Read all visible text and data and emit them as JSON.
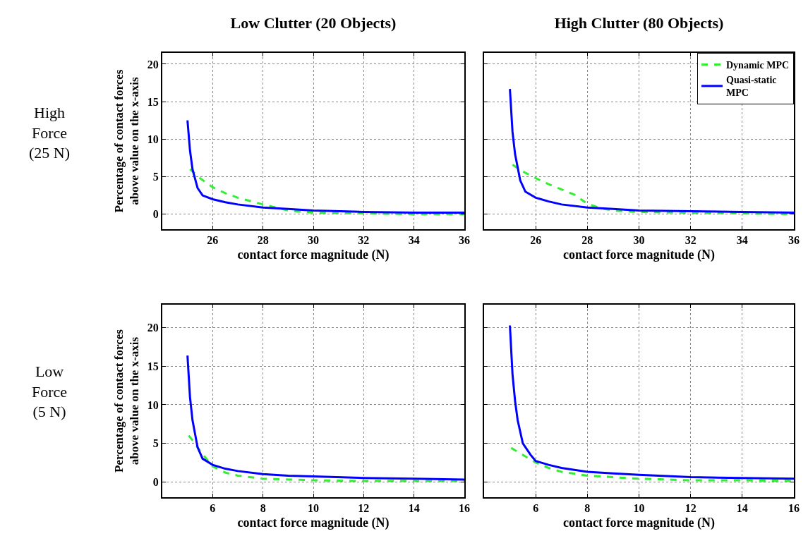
{
  "chart_data": [
    {
      "type": "line",
      "title": "Low Clutter (20 Objects)",
      "xlabel": "contact force magnitude (N)",
      "ylabel": "Percentage of contact forces above value on the x-axis",
      "annotations": [
        "High Force (25 N)"
      ],
      "xlim": [
        24,
        36
      ],
      "xticks": [
        26,
        28,
        30,
        32,
        34,
        36
      ],
      "ylim": [
        -2,
        21.5
      ],
      "yticks": [
        0,
        5,
        10,
        15,
        20
      ],
      "grid": true,
      "legend": false,
      "series": [
        {
          "color": "#33ee33",
          "line_style": "dashed",
          "x": [
            25.1,
            25.5,
            26,
            26.5,
            27,
            28,
            29,
            30,
            32,
            34,
            36
          ],
          "values": [
            6,
            4.8,
            3.6,
            2.8,
            2.2,
            1.3,
            0.5,
            0.2,
            0.1,
            0,
            0
          ]
        },
        {
          "color": "#0000ff",
          "line_style": "solid",
          "x": [
            25,
            25.1,
            25.2,
            25.4,
            25.6,
            26,
            26.5,
            27,
            28,
            29,
            30,
            32,
            34,
            36
          ],
          "values": [
            12.5,
            8.5,
            6,
            3.5,
            2.5,
            2,
            1.6,
            1.3,
            0.9,
            0.7,
            0.5,
            0.3,
            0.2,
            0.2
          ]
        }
      ]
    },
    {
      "type": "line",
      "title": "High Clutter (80 Objects)",
      "xlabel": "contact force magnitude (N)",
      "xlim": [
        24,
        36
      ],
      "xticks": [
        26,
        28,
        30,
        32,
        34,
        36
      ],
      "ylim": [
        -2,
        21.5
      ],
      "yticks": [
        0,
        5,
        10,
        15,
        20
      ],
      "grid": true,
      "legend": "top right",
      "tick_labels": "x",
      "series": [
        {
          "name": "Dynamic MPC",
          "color": "#33ee33",
          "line_style": "dashed",
          "x": [
            25.1,
            25.5,
            26,
            26.5,
            27,
            27.5,
            28,
            28.5,
            29,
            30,
            32,
            34,
            36
          ],
          "values": [
            6.6,
            5.7,
            4.8,
            4,
            3.3,
            2.6,
            1.4,
            0.8,
            0.5,
            0.3,
            0.2,
            0.1,
            0
          ]
        },
        {
          "name": "Quasi-static MPC",
          "color": "#0000ff",
          "line_style": "solid",
          "x": [
            25,
            25.1,
            25.2,
            25.4,
            25.6,
            26,
            26.5,
            27,
            28,
            29,
            30,
            32,
            34,
            36
          ],
          "values": [
            16.7,
            11,
            8,
            4.5,
            3,
            2.2,
            1.7,
            1.3,
            0.9,
            0.7,
            0.5,
            0.4,
            0.3,
            0.2
          ]
        }
      ]
    },
    {
      "type": "line",
      "xlabel": "contact force magnitude (N)",
      "ylabel": "Percentage of contact forces above value on the x-axis",
      "annotations": [
        "Low Force (5 N)"
      ],
      "xlim": [
        4,
        16
      ],
      "xticks": [
        6,
        8,
        10,
        12,
        14,
        16
      ],
      "ylim": [
        -2,
        23
      ],
      "yticks": [
        0,
        5,
        10,
        15,
        20
      ],
      "grid": true,
      "legend": false,
      "series": [
        {
          "color": "#33ee33",
          "line_style": "dashed",
          "x": [
            5.05,
            5.3,
            5.5,
            6,
            6.5,
            7,
            8,
            9,
            10,
            12,
            14,
            16
          ],
          "values": [
            6,
            5,
            4,
            2,
            1.2,
            0.8,
            0.4,
            0.3,
            0.2,
            0.1,
            0.1,
            0.1
          ]
        },
        {
          "color": "#0000ff",
          "line_style": "solid",
          "x": [
            5,
            5.1,
            5.2,
            5.4,
            5.6,
            6,
            6.5,
            7,
            8,
            9,
            10,
            12,
            14,
            16
          ],
          "values": [
            16.4,
            11,
            8,
            4.5,
            3,
            2.2,
            1.7,
            1.4,
            1,
            0.8,
            0.7,
            0.5,
            0.4,
            0.3
          ]
        }
      ]
    },
    {
      "type": "line",
      "xlabel": "contact force magnitude (N)",
      "xlim": [
        4,
        16
      ],
      "xticks": [
        6,
        8,
        10,
        12,
        14,
        16
      ],
      "ylim": [
        -2,
        23
      ],
      "yticks": [
        0,
        5,
        10,
        15,
        20
      ],
      "grid": true,
      "legend": false,
      "tick_labels": "x",
      "series": [
        {
          "color": "#33ee33",
          "line_style": "dashed",
          "x": [
            5.05,
            5.5,
            6,
            6.5,
            7,
            8,
            9,
            10,
            12,
            14,
            16
          ],
          "values": [
            4.4,
            3.5,
            2.5,
            1.8,
            1.3,
            0.8,
            0.6,
            0.4,
            0.2,
            0.2,
            0.1
          ]
        },
        {
          "color": "#0000ff",
          "line_style": "solid",
          "x": [
            5,
            5.1,
            5.2,
            5.3,
            5.5,
            5.8,
            6,
            6.5,
            7,
            8,
            9,
            10,
            12,
            14,
            16
          ],
          "values": [
            20.3,
            14,
            10.5,
            8,
            5,
            3.5,
            2.7,
            2.2,
            1.8,
            1.3,
            1.1,
            0.9,
            0.6,
            0.5,
            0.4
          ]
        }
      ]
    }
  ]
}
